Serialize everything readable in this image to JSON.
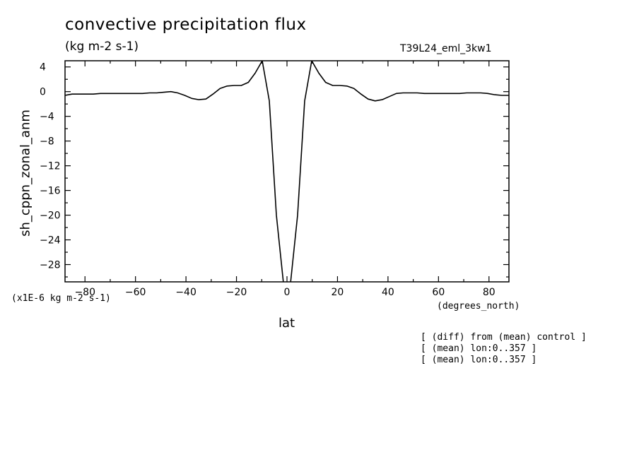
{
  "chart_data": {
    "type": "line",
    "title": "convective precipitation flux",
    "units": "(kg m-2 s-1)",
    "run_label": "T39L24_eml_3kw1",
    "ylabel": "sh_cppn_zonal_anm",
    "xlabel": "lat",
    "x_unit_label": "(degrees_north)",
    "scale_label": "(x1E-6 kg m-2 s-1)",
    "xlim": [
      -87.9,
      87.9
    ],
    "ylim": [
      -30.8,
      5.0
    ],
    "x_ticks": [
      -80,
      -60,
      -40,
      -20,
      0,
      20,
      40,
      60,
      80
    ],
    "x_tick_labels": [
      "-80",
      "-60",
      "-40",
      "-20",
      "0",
      "20",
      "40",
      "60",
      "80"
    ],
    "y_ticks": [
      4,
      0,
      -4,
      -8,
      -12,
      -16,
      -20,
      -24,
      -28
    ],
    "y_tick_labels": [
      "4",
      "0",
      "-4",
      "-8",
      "-12",
      "-16",
      "-20",
      "-24",
      "-28"
    ],
    "series": [
      {
        "x": [
          -87.9,
          -85.1,
          -82.3,
          -79.5,
          -76.7,
          -73.9,
          -71.2,
          -68.4,
          -65.6,
          -62.8,
          -60.0,
          -57.2,
          -54.4,
          -51.6,
          -48.8,
          -46.0,
          -43.3,
          -40.5,
          -37.7,
          -34.9,
          -32.1,
          -29.3,
          -26.5,
          -23.7,
          -20.9,
          -18.1,
          -15.3,
          -12.6,
          -9.8,
          -7.0,
          -4.2,
          -1.4,
          1.4,
          4.2,
          7.0,
          9.8,
          12.6,
          15.3,
          18.1,
          20.9,
          23.7,
          26.5,
          29.3,
          32.1,
          34.9,
          37.7,
          40.5,
          43.3,
          46.0,
          48.8,
          51.6,
          54.4,
          57.2,
          60.0,
          62.8,
          65.6,
          68.4,
          71.2,
          73.9,
          76.7,
          79.5,
          82.3,
          85.1,
          87.9
        ],
        "y": [
          -0.6,
          -0.4,
          -0.4,
          -0.4,
          -0.4,
          -0.3,
          -0.3,
          -0.3,
          -0.3,
          -0.3,
          -0.3,
          -0.3,
          -0.2,
          -0.2,
          -0.1,
          0.0,
          -0.2,
          -0.6,
          -1.1,
          -1.3,
          -1.2,
          -0.4,
          0.5,
          0.9,
          1.0,
          1.0,
          1.5,
          3.0,
          5.0,
          -1.5,
          -20.0,
          -31.0,
          -31.0,
          -20.0,
          -1.5,
          5.0,
          3.0,
          1.5,
          1.0,
          1.0,
          0.9,
          0.5,
          -0.4,
          -1.2,
          -1.5,
          -1.3,
          -0.8,
          -0.3,
          -0.2,
          -0.2,
          -0.2,
          -0.3,
          -0.3,
          -0.3,
          -0.3,
          -0.3,
          -0.3,
          -0.2,
          -0.2,
          -0.2,
          -0.3,
          -0.5,
          -0.6,
          -0.6
        ]
      }
    ],
    "grid": false,
    "legend": "none"
  },
  "notes": [
    "[ (diff) from (mean) control ]",
    "[ (mean) lon:0..357 ]",
    "[ (mean) lon:0..357 ]"
  ]
}
